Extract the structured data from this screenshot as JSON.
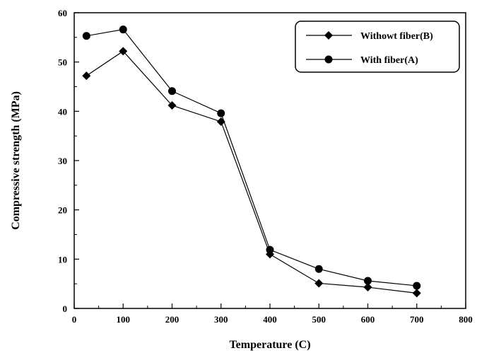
{
  "chart_data": {
    "type": "line",
    "title": "",
    "xlabel": "Temperature (C)",
    "ylabel": "Compressive strength (MPa)",
    "xlim": [
      0,
      800
    ],
    "ylim": [
      0,
      60
    ],
    "xticks": [
      0,
      100,
      200,
      300,
      400,
      500,
      600,
      700,
      800
    ],
    "yticks": [
      0,
      10,
      20,
      30,
      40,
      50,
      60
    ],
    "grid": false,
    "legend_position": "top-right",
    "series": [
      {
        "name": "Withowt fiber(B)",
        "marker": "diamond",
        "color": "#000000",
        "x": [
          25,
          100,
          200,
          300,
          400,
          500,
          600,
          700
        ],
        "y": [
          47.2,
          52.2,
          41.2,
          37.9,
          11.0,
          5.1,
          4.3,
          3.1
        ]
      },
      {
        "name": "With fiber(A)",
        "marker": "circle",
        "color": "#000000",
        "x": [
          25,
          100,
          200,
          300,
          400,
          500,
          600,
          700
        ],
        "y": [
          55.3,
          56.6,
          44.1,
          39.6,
          11.9,
          8.0,
          5.6,
          4.6
        ]
      }
    ]
  }
}
